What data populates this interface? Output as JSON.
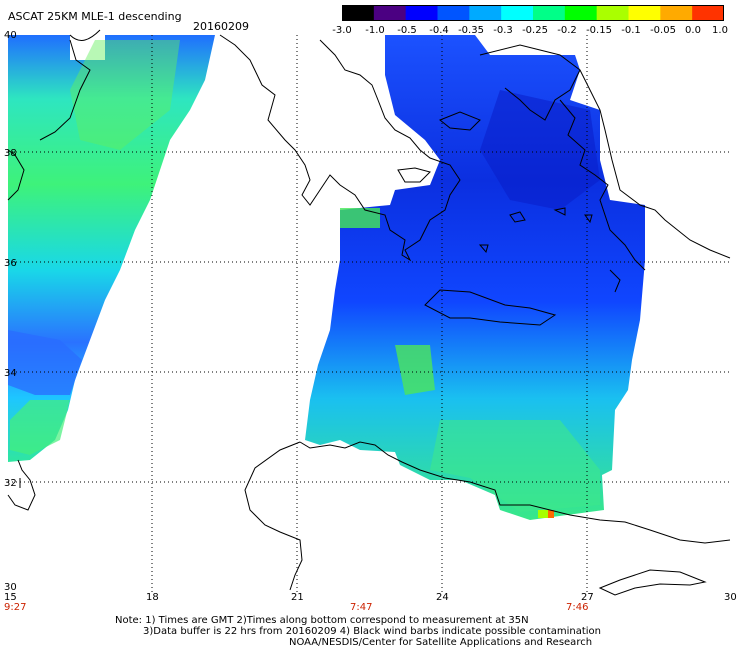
{
  "header": {
    "title": "ASCAT 25KM MLE-1 descending",
    "date": "20160209"
  },
  "colorbar": {
    "labels": [
      "-3.0",
      "-1.0",
      "-0.5",
      "-0.4",
      "-0.35",
      "-0.3",
      "-0.25",
      "-0.2",
      "-0.15",
      "-0.1",
      "-0.05",
      "0.0",
      "1.0"
    ],
    "colors": [
      "#000000",
      "#4b0082",
      "#0000ff",
      "#0055ff",
      "#00aaff",
      "#00ffff",
      "#00ff88",
      "#00ff00",
      "#aaff00",
      "#ffff00",
      "#ffaa00",
      "#ff3300"
    ]
  },
  "map": {
    "lat_labels": [
      "40",
      "38",
      "36",
      "34",
      "32",
      "30"
    ],
    "lon_labels": [
      "15",
      "18",
      "21",
      "24",
      "27",
      "30"
    ],
    "time_labels": [
      "9:27",
      "7:47",
      "7:46"
    ]
  },
  "notes": {
    "line1": "Note: 1) Times are GMT 2)Times along bottom correspond to measurement at 35N",
    "line2": "3)Data buffer is 22 hrs from 20160209 4) Black wind barbs indicate possible contamination",
    "line3": "NOAA/NESDIS/Center for Satellite Applications and Research"
  }
}
